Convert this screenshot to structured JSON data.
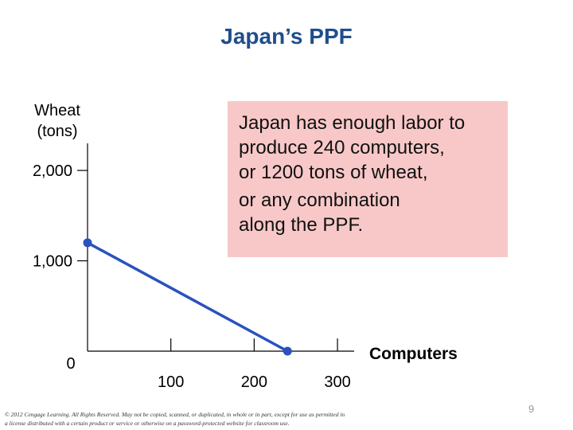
{
  "slide": {
    "title": "Japan’s PPF",
    "callout_lines": [
      "Japan has enough labor to",
      "produce 240 computers,",
      "or 1200 tons of wheat,",
      "or any combination",
      "along the PPF."
    ],
    "copyright": "© 2012 Cengage Learning. All Rights Reserved. May not be copied, scanned, or duplicated, in whole or in part, except for use as permitted in a license distributed with a certain product or service or otherwise on a password-protected website for classroom use.",
    "page_number": "9"
  },
  "chart_data": {
    "type": "line",
    "ylabel_lines": [
      "Wheat",
      "(tons)"
    ],
    "xlabel": "Computers",
    "y_ticks": [
      {
        "value": 0,
        "label": "0"
      },
      {
        "value": 1000,
        "label": "1,000"
      },
      {
        "value": 2000,
        "label": "2,000"
      }
    ],
    "x_ticks": [
      {
        "value": 100,
        "label": "100"
      },
      {
        "value": 200,
        "label": "200"
      },
      {
        "value": 300,
        "label": "300"
      }
    ],
    "xlim": [
      0,
      320
    ],
    "ylim": [
      0,
      2300
    ],
    "series": [
      {
        "x": [
          0,
          240
        ],
        "y": [
          1200,
          0
        ],
        "color": "#2a52be"
      }
    ],
    "point_color": "#2a52be",
    "grid": false
  }
}
